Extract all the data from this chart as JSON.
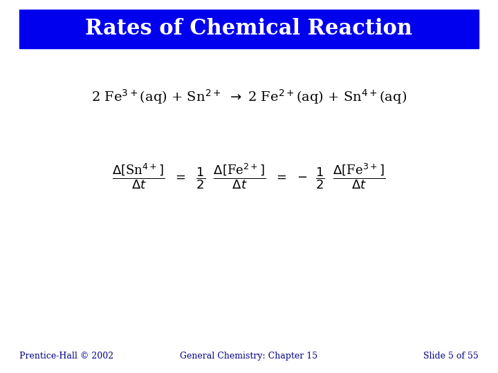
{
  "title": "Rates of Chemical Reaction",
  "title_bg_color": "#0000EE",
  "title_text_color": "#FFFFFF",
  "bg_color": "#FFFFFF",
  "body_text_color": "#000000",
  "footer_left": "Prentice-Hall © 2002",
  "footer_center": "General Chemistry: Chapter 15",
  "footer_right": "Slide 5 of 55",
  "footer_color": "#000080",
  "title_fontsize": 22,
  "eq1_fontsize": 14,
  "rate_fontsize": 13,
  "footer_fontsize": 9
}
